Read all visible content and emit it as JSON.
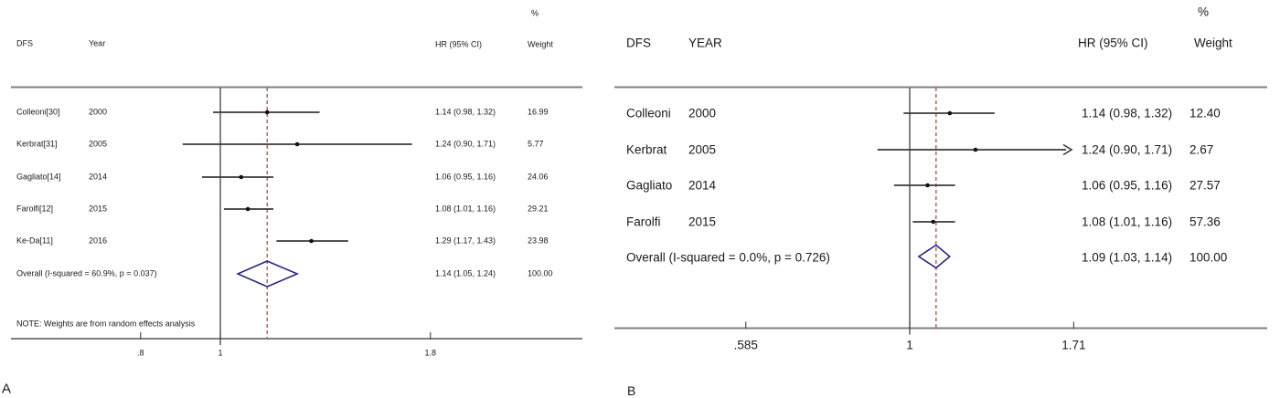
{
  "colors": {
    "rule": "#7f7f7f",
    "axis_line": "#4d4d4d",
    "ci_line": "#3a3a3a",
    "point": "#111111",
    "dashed_ref": "#ae5a52",
    "diamond_outline": "#28287e",
    "text": "#1a1a1a"
  },
  "chart_data": [
    {
      "type": "forest",
      "panel_label": "A",
      "columns": {
        "study": "DFS",
        "year": "Year",
        "hr": "HR (95% CI)",
        "pct": "%",
        "weight": "Weight"
      },
      "note": "NOTE: Weights are from random effects analysis",
      "axis_scale": "log",
      "axis_ticks": [
        {
          "v": 0.8,
          "label": ".8"
        },
        {
          "v": 1.0,
          "label": "1"
        },
        {
          "v": 1.8,
          "label": "1.8"
        }
      ],
      "rows": [
        {
          "study": "Colleoni[30]",
          "year": "2000",
          "hr": 1.14,
          "lo": 0.98,
          "hi": 1.32,
          "hr_text": "1.14 (0.98, 1.32)",
          "weight": "16.99"
        },
        {
          "study": "Kerbrat[31]",
          "year": "2005",
          "hr": 1.24,
          "lo": 0.9,
          "hi": 1.71,
          "hr_text": "1.24 (0.90, 1.71)",
          "weight": "5.77"
        },
        {
          "study": "Gagliato[14]",
          "year": "2014",
          "hr": 1.06,
          "lo": 0.95,
          "hi": 1.16,
          "hr_text": "1.06 (0.95, 1.16)",
          "weight": "24.06"
        },
        {
          "study": "Farolfi[12]",
          "year": "2015",
          "hr": 1.08,
          "lo": 1.01,
          "hi": 1.16,
          "hr_text": "1.08 (1.01, 1.16)",
          "weight": "29.21"
        },
        {
          "study": "Ke-Da[11]",
          "year": "2016",
          "hr": 1.29,
          "lo": 1.17,
          "hi": 1.43,
          "hr_text": "1.29 (1.17, 1.43)",
          "weight": "23.98"
        }
      ],
      "overall": {
        "label": "Overall  (I-squared = 60.9%, p = 0.037)",
        "hr": 1.14,
        "lo": 1.05,
        "hi": 1.24,
        "hr_text": "1.14 (1.05, 1.24)",
        "weight": "100.00"
      }
    },
    {
      "type": "forest",
      "panel_label": "B",
      "columns": {
        "study": "DFS",
        "year": "YEAR",
        "hr": "HR (95% CI)",
        "pct": "%",
        "weight": "Weight"
      },
      "note": "",
      "axis_scale": "log",
      "axis_ticks": [
        {
          "v": 0.585,
          "label": ".585"
        },
        {
          "v": 1.0,
          "label": "1"
        },
        {
          "v": 1.71,
          "label": "1.71"
        }
      ],
      "rows": [
        {
          "study": "Colleoni",
          "year": "2000",
          "hr": 1.14,
          "lo": 0.98,
          "hi": 1.32,
          "hr_text": "1.14 (0.98, 1.32)",
          "weight": "12.40"
        },
        {
          "study": "Kerbrat",
          "year": "2005",
          "hr": 1.24,
          "lo": 0.9,
          "hi": 1.71,
          "hr_text": "1.24 (0.90, 1.71)",
          "weight": "2.67",
          "clipped_hi": true
        },
        {
          "study": "Gagliato",
          "year": "2014",
          "hr": 1.06,
          "lo": 0.95,
          "hi": 1.16,
          "hr_text": "1.06 (0.95, 1.16)",
          "weight": "27.57"
        },
        {
          "study": "Farolfi",
          "year": "2015",
          "hr": 1.08,
          "lo": 1.01,
          "hi": 1.16,
          "hr_text": "1.08 (1.01, 1.16)",
          "weight": "57.36"
        }
      ],
      "overall": {
        "label": "Overall  (I-squared = 0.0%, p = 0.726)",
        "hr": 1.09,
        "lo": 1.03,
        "hi": 1.14,
        "hr_text": "1.09 (1.03, 1.14)",
        "weight": "100.00"
      }
    }
  ]
}
